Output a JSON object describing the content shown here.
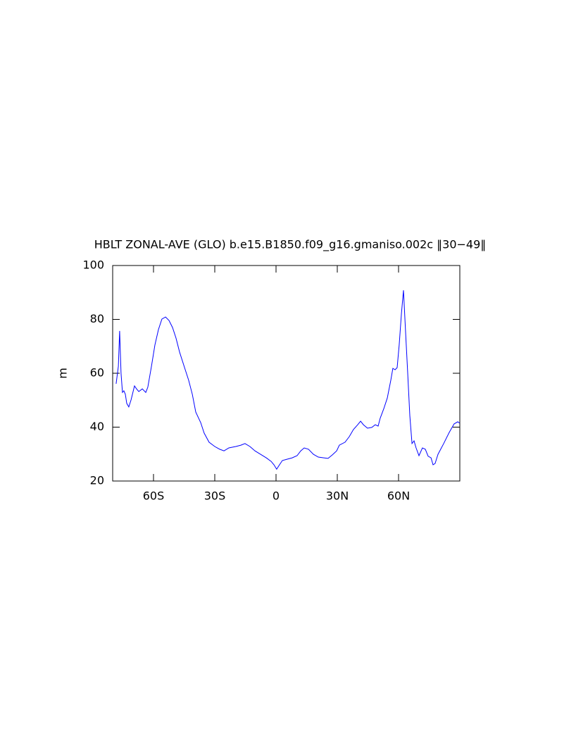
{
  "chart_data": {
    "type": "line",
    "title": "HBLT ZONAL-AVE (GLO) b.e15.B1850.f09_g16.gmaniso.002c ‖30−49‖",
    "ylabel": "m",
    "xlim": [
      -80,
      90
    ],
    "ylim": [
      20,
      100
    ],
    "xticks": [
      {
        "value": -60,
        "label": "60S"
      },
      {
        "value": -30,
        "label": "30S"
      },
      0,
      {
        "value": 30,
        "label": "30N"
      },
      {
        "value": 60,
        "label": "60N"
      }
    ],
    "yticks": [
      20,
      40,
      60,
      80,
      100
    ],
    "x": [
      -78.3,
      -77.2,
      -76.6,
      -75.9,
      -75.2,
      -74.5,
      -73.8,
      -73.1,
      -72.1,
      -71.0,
      -69.3,
      -68.3,
      -67.2,
      -65.5,
      -63.8,
      -62.8,
      -61.0,
      -59.3,
      -57.6,
      -55.9,
      -54.1,
      -52.4,
      -50.7,
      -49.0,
      -47.2,
      -44.8,
      -42.8,
      -41.0,
      -39.3,
      -36.9,
      -35.2,
      -32.8,
      -30.0,
      -27.6,
      -25.5,
      -23.1,
      -19.7,
      -17.2,
      -15.2,
      -12.8,
      -10.3,
      -7.6,
      -4.8,
      -2.4,
      -1.0,
      0.3,
      1.7,
      3.1,
      5.5,
      7.9,
      10.3,
      12.1,
      13.8,
      15.9,
      18.3,
      20.7,
      23.4,
      25.5,
      27.6,
      29.7,
      31.0,
      33.8,
      35.9,
      37.9,
      40.0,
      41.4,
      42.8,
      44.8,
      46.9,
      48.6,
      50.0,
      51.0,
      52.8,
      54.5,
      56.2,
      57.2,
      58.3,
      59.3,
      60.3,
      61.4,
      62.4,
      63.4,
      64.5,
      65.5,
      66.6,
      67.6,
      68.6,
      70.0,
      71.7,
      73.1,
      74.5,
      75.9,
      76.9,
      77.9,
      79.3,
      82.1,
      84.8,
      87.2,
      89.0,
      90.0
    ],
    "series": [
      {
        "name": "HBLT",
        "color": "#0000ff",
        "values": [
          56.1,
          62.6,
          75.7,
          60.0,
          52.9,
          53.5,
          52.2,
          48.8,
          47.5,
          50.1,
          55.3,
          54.2,
          53.2,
          54.2,
          52.9,
          54.8,
          62.6,
          70.5,
          76.2,
          80.1,
          80.9,
          79.6,
          77.0,
          73.1,
          67.8,
          62.1,
          57.4,
          52.2,
          45.6,
          41.7,
          37.8,
          34.4,
          32.8,
          31.8,
          31.2,
          32.3,
          32.8,
          33.3,
          33.9,
          32.8,
          31.2,
          29.9,
          28.6,
          27.3,
          26.0,
          24.4,
          26.0,
          27.6,
          28.1,
          28.6,
          29.4,
          31.2,
          32.3,
          31.8,
          29.9,
          28.9,
          28.6,
          28.4,
          29.7,
          31.2,
          33.3,
          34.4,
          36.5,
          39.1,
          40.9,
          42.2,
          40.9,
          39.6,
          39.9,
          40.9,
          40.4,
          43.3,
          46.9,
          50.8,
          57.4,
          61.8,
          61.3,
          62.1,
          70.5,
          82.2,
          90.8,
          75.7,
          60.0,
          44.3,
          33.9,
          34.9,
          32.3,
          29.4,
          32.3,
          31.8,
          29.2,
          28.6,
          26.0,
          26.5,
          29.9,
          33.9,
          38.0,
          41.2,
          42.0,
          41.4
        ]
      }
    ]
  }
}
